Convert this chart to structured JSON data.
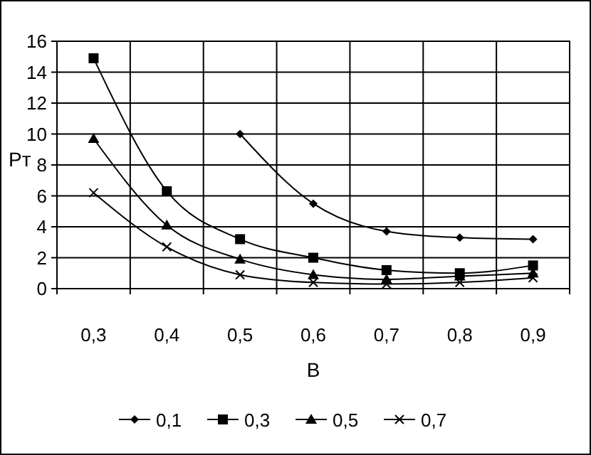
{
  "chart_data": {
    "type": "line",
    "xlabel": "В",
    "ylabel": "Рт",
    "categories": [
      "0,3",
      "0,4",
      "0,5",
      "0,6",
      "0,7",
      "0,8",
      "0,9"
    ],
    "series": [
      {
        "name": "0,1",
        "color": "#000000",
        "marker": "diamond",
        "values": [
          null,
          null,
          10,
          5.5,
          3.7,
          3.3,
          3.2
        ]
      },
      {
        "name": "0,3",
        "color": "#000000",
        "marker": "square",
        "values": [
          14.9,
          6.3,
          3.2,
          2,
          1.2,
          1,
          1.5
        ]
      },
      {
        "name": "0,5",
        "color": "#000000",
        "marker": "triangle",
        "values": [
          9.7,
          4.1,
          1.9,
          0.9,
          0.6,
          0.8,
          1
        ]
      },
      {
        "name": "0,7",
        "color": "#000000",
        "marker": "cross",
        "values": [
          6.2,
          2.7,
          0.9,
          0.4,
          0.3,
          0.4,
          0.7
        ]
      }
    ],
    "ylim": [
      0,
      16
    ],
    "yticks": [
      0,
      2,
      4,
      6,
      8,
      10,
      12,
      14,
      16
    ],
    "grid": true,
    "legend": "bottom"
  }
}
